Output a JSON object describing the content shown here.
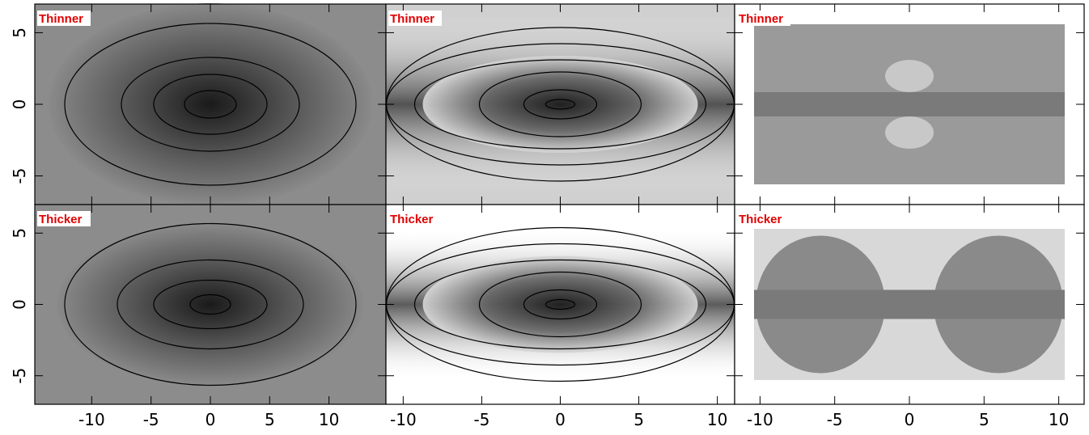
{
  "chart_data": [
    {
      "type": "heatmap",
      "title": "Thinner",
      "xlim": [
        -14.8,
        14.8
      ],
      "ylim": [
        -7,
        7
      ],
      "xticks": [
        -10,
        -5,
        0,
        5,
        10
      ],
      "yticks": [
        -5,
        0,
        5
      ]
    },
    {
      "type": "heatmap",
      "title": "Thinner",
      "xlim": [
        -11.1,
        11.1
      ],
      "ylim": [
        -7,
        7
      ],
      "xticks": [
        -10,
        -5,
        0,
        5,
        10
      ],
      "yticks": [
        -5,
        0,
        5
      ]
    },
    {
      "type": "heatmap",
      "title": "Thinner",
      "xlim": [
        -11.7,
        11.7
      ],
      "ylim": [
        -7,
        7
      ],
      "xticks": [
        -10,
        -5,
        0,
        5,
        10
      ],
      "yticks": [
        -5,
        0,
        5
      ]
    },
    {
      "type": "heatmap",
      "title": "Thicker",
      "xlim": [
        -14.8,
        14.8
      ],
      "ylim": [
        -7,
        7
      ],
      "xticks": [
        -10,
        -5,
        0,
        5,
        10
      ],
      "yticks": [
        -5,
        0,
        5
      ]
    },
    {
      "type": "heatmap",
      "title": "Thicker",
      "xlim": [
        -11.1,
        11.1
      ],
      "ylim": [
        -7,
        7
      ],
      "xticks": [
        -10,
        -5,
        0,
        5,
        10
      ],
      "yticks": [
        -5,
        0,
        5
      ]
    },
    {
      "type": "heatmap",
      "title": "Thicker",
      "xlim": [
        -11.7,
        11.7
      ],
      "ylim": [
        -7,
        7
      ],
      "xticks": [
        -10,
        -5,
        0,
        5,
        10
      ],
      "yticks": [
        -5,
        0,
        5
      ]
    }
  ]
}
